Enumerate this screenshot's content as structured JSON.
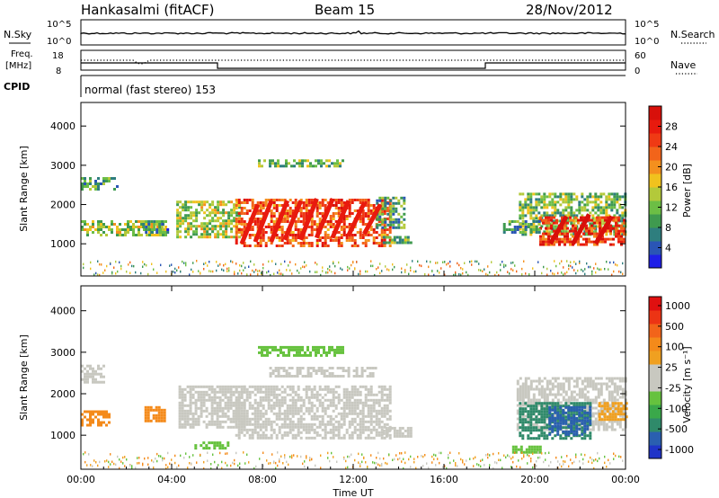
{
  "header": {
    "station": "Hankasalmi (fitACF)",
    "beam": "Beam 15",
    "date": "28/Nov/2012"
  },
  "nsky_panel": {
    "left_label": "N.Sky",
    "right_label": "N.Search",
    "left_ticks": [
      "10^5",
      "10^0"
    ],
    "right_ticks": [
      "10^5",
      "10^0"
    ]
  },
  "freq_panel": {
    "left_label_line1": "Freq.",
    "left_label_line2": "[MHz]",
    "left_ticks": [
      "18",
      "8"
    ],
    "right_label": "Nave",
    "right_ticks": [
      "60",
      "0"
    ]
  },
  "cpid_panel": {
    "label": "CPID",
    "text": "normal (fast stereo) 153"
  },
  "chart_data": [
    {
      "type": "heatmap",
      "name": "power",
      "ylabel": "Slant Range [km]",
      "xlabel": "",
      "ylim": [
        180,
        4600
      ],
      "xlim": [
        0,
        24
      ],
      "yticks": [
        "1000",
        "2000",
        "3000",
        "4000"
      ],
      "ytick_values": [
        1000,
        2000,
        3000,
        4000
      ],
      "colorbar": {
        "label": "Power [dB]",
        "ticks": [
          "4",
          "8",
          "12",
          "16",
          "20",
          "24",
          "28"
        ],
        "tick_values": [
          4,
          8,
          12,
          16,
          20,
          24,
          28
        ],
        "range": [
          0,
          32
        ],
        "colors": [
          "#1f1fe8",
          "#2a55b5",
          "#2e7e7e",
          "#3f9a4f",
          "#6cbe45",
          "#b3c93a",
          "#f0c21e",
          "#f4901e",
          "#f2641a",
          "#ef3a14",
          "#e81a0e",
          "#d8100a"
        ]
      },
      "regions": [
        {
          "t0": 0.0,
          "t1": 3.7,
          "r0": 1250,
          "r1": 1600,
          "level": 14
        },
        {
          "t0": 0.0,
          "t1": 1.6,
          "r0": 2400,
          "r1": 2700,
          "level": 9
        },
        {
          "t0": 2.7,
          "t1": 3.8,
          "r0": 1300,
          "r1": 1600,
          "level": 8
        },
        {
          "t0": 4.2,
          "t1": 7.0,
          "r0": 1200,
          "r1": 2100,
          "level": 14
        },
        {
          "t0": 6.8,
          "t1": 13.6,
          "r0": 950,
          "r1": 2150,
          "level": 24
        },
        {
          "t0": 13.0,
          "t1": 14.2,
          "r0": 1400,
          "r1": 2200,
          "level": 10
        },
        {
          "t0": 13.3,
          "t1": 14.6,
          "r0": 1000,
          "r1": 1200,
          "level": 12
        },
        {
          "t0": 7.8,
          "t1": 11.6,
          "r0": 2950,
          "r1": 3150,
          "level": 11
        },
        {
          "t0": 19.3,
          "t1": 24.0,
          "r0": 1250,
          "r1": 2300,
          "level": 12
        },
        {
          "t0": 20.2,
          "t1": 24.0,
          "r0": 950,
          "r1": 1700,
          "level": 26
        },
        {
          "t0": 18.6,
          "t1": 20.2,
          "r0": 1300,
          "r1": 1600,
          "level": 9
        }
      ],
      "streaks": [
        {
          "t": 7.4,
          "r0": 1000,
          "r1": 2000,
          "level": 28
        },
        {
          "t": 8.0,
          "r0": 1050,
          "r1": 2100,
          "level": 28
        },
        {
          "t": 8.7,
          "r0": 1050,
          "r1": 2100,
          "level": 28
        },
        {
          "t": 9.3,
          "r0": 1100,
          "r1": 2100,
          "level": 28
        },
        {
          "t": 10.0,
          "r0": 1100,
          "r1": 2150,
          "level": 28
        },
        {
          "t": 10.7,
          "r0": 1150,
          "r1": 2150,
          "level": 28
        },
        {
          "t": 11.4,
          "r0": 1150,
          "r1": 2100,
          "level": 28
        },
        {
          "t": 12.1,
          "r0": 1200,
          "r1": 2050,
          "level": 28
        },
        {
          "t": 12.8,
          "r0": 1250,
          "r1": 2000,
          "level": 28
        },
        {
          "t": 21.0,
          "r0": 1000,
          "r1": 1700,
          "level": 30
        },
        {
          "t": 22.0,
          "r0": 1000,
          "r1": 1750,
          "level": 30
        },
        {
          "t": 23.0,
          "r0": 1000,
          "r1": 1700,
          "level": 30
        }
      ]
    },
    {
      "type": "heatmap",
      "name": "velocity",
      "ylabel": "Slant Range [km]",
      "xlabel": "Time UT",
      "ylim": [
        180,
        4600
      ],
      "xlim": [
        0,
        24
      ],
      "yticks": [
        "1000",
        "2000",
        "3000",
        "4000"
      ],
      "ytick_values": [
        1000,
        2000,
        3000,
        4000
      ],
      "xticks": [
        "00:00",
        "04:00",
        "08:00",
        "12:00",
        "16:00",
        "20:00",
        "00:00"
      ],
      "xtick_values": [
        0,
        4,
        8,
        12,
        16,
        20,
        24
      ],
      "colorbar": {
        "label": "Velocity [m s⁻¹]",
        "ticks": [
          "1000",
          "500",
          "100",
          "25",
          "-25",
          "-100",
          "-500",
          "-1000"
        ],
        "colors": [
          "#1f34c8",
          "#2a5fb0",
          "#2f8a6a",
          "#3aa84a",
          "#66c23e",
          "#c8c8c0",
          "#c8c8c0",
          "#f0a020",
          "#f48a1a",
          "#f2641a",
          "#ec3414",
          "#e01010"
        ]
      },
      "regions": [
        {
          "t0": 0.0,
          "t1": 1.0,
          "r0": 2300,
          "r1": 2700,
          "color": "#c8c8c0"
        },
        {
          "t0": 0.0,
          "t1": 1.2,
          "r0": 1250,
          "r1": 1600,
          "color": "#f48a1a"
        },
        {
          "t0": 2.8,
          "t1": 3.7,
          "r0": 1350,
          "r1": 1700,
          "color": "#f48a1a"
        },
        {
          "t0": 4.3,
          "t1": 7.2,
          "r0": 1200,
          "r1": 2200,
          "color": "#c8c8c0"
        },
        {
          "t0": 6.8,
          "t1": 13.6,
          "r0": 950,
          "r1": 2200,
          "color": "#c8c8c0"
        },
        {
          "t0": 8.3,
          "t1": 13.0,
          "r0": 2450,
          "r1": 2650,
          "color": "#c8c8c0"
        },
        {
          "t0": 7.8,
          "t1": 11.6,
          "r0": 2950,
          "r1": 3150,
          "color": "#66c23e"
        },
        {
          "t0": 13.3,
          "t1": 14.6,
          "r0": 1000,
          "r1": 1200,
          "color": "#c8c8c0"
        },
        {
          "t0": 5.0,
          "t1": 6.5,
          "r0": 700,
          "r1": 850,
          "color": "#66c23e"
        },
        {
          "t0": 19.2,
          "t1": 24.0,
          "r0": 1100,
          "r1": 2400,
          "color": "#c8c8c0"
        },
        {
          "t0": 19.3,
          "t1": 22.5,
          "r0": 900,
          "r1": 1800,
          "color": "#2f8a6a"
        },
        {
          "t0": 20.6,
          "t1": 22.4,
          "r0": 1000,
          "r1": 1700,
          "color": "#2a5fb0"
        },
        {
          "t0": 22.8,
          "t1": 24.0,
          "r0": 1350,
          "r1": 1800,
          "color": "#f0a020"
        },
        {
          "t0": 19.0,
          "t1": 20.3,
          "r0": 600,
          "r1": 750,
          "color": "#66c23e"
        }
      ]
    }
  ],
  "colors": {
    "trace": "#000000",
    "frame": "#000000",
    "background": "#ffffff"
  }
}
